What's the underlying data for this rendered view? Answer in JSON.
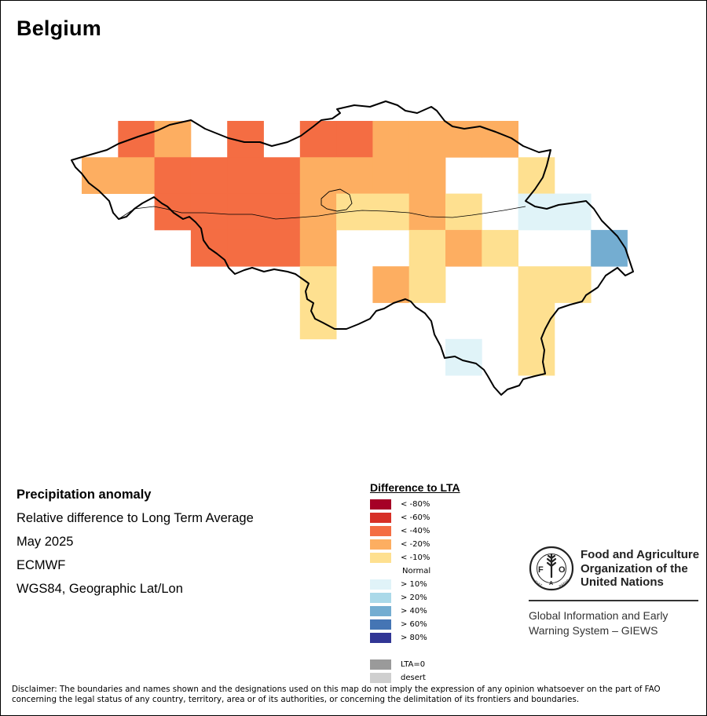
{
  "title": "Belgium",
  "info": {
    "line1": "Precipitation anomaly",
    "line2": "Relative difference to Long Term Average",
    "line3": "May 2025",
    "line4": "ECMWF",
    "line5": "WGS84, Geographic Lat/Lon"
  },
  "legend": {
    "title": "Difference to LTA",
    "items": [
      {
        "label": "< -80%",
        "color": "#a50026"
      },
      {
        "label": "< -60%",
        "color": "#d73027"
      },
      {
        "label": "< -40%",
        "color": "#f46d43"
      },
      {
        "label": "< -20%",
        "color": "#fdae61"
      },
      {
        "label": "< -10%",
        "color": "#fee090"
      },
      {
        "label": "Normal",
        "color": ""
      },
      {
        "label": "> 10%",
        "color": "#e0f3f8"
      },
      {
        "label": "> 20%",
        "color": "#abd9e9"
      },
      {
        "label": "> 40%",
        "color": "#74add1"
      },
      {
        "label": "> 60%",
        "color": "#4575b4"
      },
      {
        "label": "> 80%",
        "color": "#313695"
      },
      {
        "label": "",
        "color": ""
      },
      {
        "label": "LTA=0",
        "color": "#9a9a9a"
      },
      {
        "label": "desert",
        "color": "#cfcfcf"
      }
    ]
  },
  "fao": {
    "name_line1": "Food and Agriculture",
    "name_line2": "Organization of the",
    "name_line3": "United Nations",
    "giews_line1": "Global Information and Early",
    "giews_line2": "Warning System – GIEWS",
    "logo_text": "FAO",
    "motto": "FIAT PANIS"
  },
  "disclaimer": "Disclaimer: The boundaries and names shown and the designations used on this map do not imply the expression of any opinion whatsoever on the part of FAO concerning the legal status of any country, territory, area or of its authorities, or concerning the delimitation of its frontiers and boundaries.",
  "map": {
    "cells": [
      {
        "name": "cell-r0-c1",
        "cat": "< -40%"
      },
      {
        "name": "cell-r0-c2",
        "cat": "< -20%"
      },
      {
        "name": "cell-r0-c4",
        "cat": "< -40%"
      },
      {
        "name": "cell-r0-c6",
        "cat": "< -40%"
      },
      {
        "name": "cell-r0-c7",
        "cat": "< -40%"
      },
      {
        "name": "cell-r0-c8",
        "cat": "< -20%"
      },
      {
        "name": "cell-r0-c9",
        "cat": "< -20%"
      },
      {
        "name": "cell-r0-c10",
        "cat": "< -20%"
      },
      {
        "name": "cell-r0-c11",
        "cat": "< -20%"
      },
      {
        "name": "cell-r1-c0",
        "cat": "< -20%"
      },
      {
        "name": "cell-r1-c1",
        "cat": "< -20%"
      },
      {
        "name": "cell-r1-c2",
        "cat": "< -40%"
      },
      {
        "name": "cell-r1-c3",
        "cat": "< -40%"
      },
      {
        "name": "cell-r1-c4",
        "cat": "< -40%"
      },
      {
        "name": "cell-r1-c5",
        "cat": "< -40%"
      },
      {
        "name": "cell-r1-c6",
        "cat": "< -20%"
      },
      {
        "name": "cell-r1-c7",
        "cat": "< -20%"
      },
      {
        "name": "cell-r1-c8",
        "cat": "< -20%"
      },
      {
        "name": "cell-r1-c9",
        "cat": "< -20%"
      },
      {
        "name": "cell-r1-c12",
        "cat": "< -10%"
      },
      {
        "name": "cell-r2-c2",
        "cat": "< -40%"
      },
      {
        "name": "cell-r2-c3",
        "cat": "< -40%"
      },
      {
        "name": "cell-r2-c4",
        "cat": "< -40%"
      },
      {
        "name": "cell-r2-c5",
        "cat": "< -40%"
      },
      {
        "name": "cell-r2-c6",
        "cat": "< -20%"
      },
      {
        "name": "cell-r2-c7",
        "cat": "< -10%"
      },
      {
        "name": "cell-r2-c8",
        "cat": "< -10%"
      },
      {
        "name": "cell-r2-c9",
        "cat": "< -20%"
      },
      {
        "name": "cell-r2-c10",
        "cat": "< -10%"
      },
      {
        "name": "cell-r2-c12",
        "cat": "> 10%"
      },
      {
        "name": "cell-r2-c13",
        "cat": "> 10%"
      },
      {
        "name": "cell-r3-c3",
        "cat": "< -40%"
      },
      {
        "name": "cell-r3-c4",
        "cat": "< -40%"
      },
      {
        "name": "cell-r3-c5",
        "cat": "< -40%"
      },
      {
        "name": "cell-r3-c6",
        "cat": "< -20%"
      },
      {
        "name": "cell-r3-c9",
        "cat": "< -10%"
      },
      {
        "name": "cell-r3-c10",
        "cat": "< -20%"
      },
      {
        "name": "cell-r3-c11",
        "cat": "< -10%"
      },
      {
        "name": "cell-r3-c14",
        "cat": "> 40%"
      },
      {
        "name": "cell-r4-c6",
        "cat": "< -10%"
      },
      {
        "name": "cell-r4-c8",
        "cat": "< -20%"
      },
      {
        "name": "cell-r4-c9",
        "cat": "< -10%"
      },
      {
        "name": "cell-r4-c12",
        "cat": "< -10%"
      },
      {
        "name": "cell-r4-c13",
        "cat": "< -10%"
      },
      {
        "name": "cell-r5-c6",
        "cat": "< -10%"
      },
      {
        "name": "cell-r5-c12",
        "cat": "< -10%"
      },
      {
        "name": "cell-r6-c10",
        "cat": "> 10%"
      },
      {
        "name": "cell-r6-c12",
        "cat": "< -10%"
      }
    ]
  }
}
